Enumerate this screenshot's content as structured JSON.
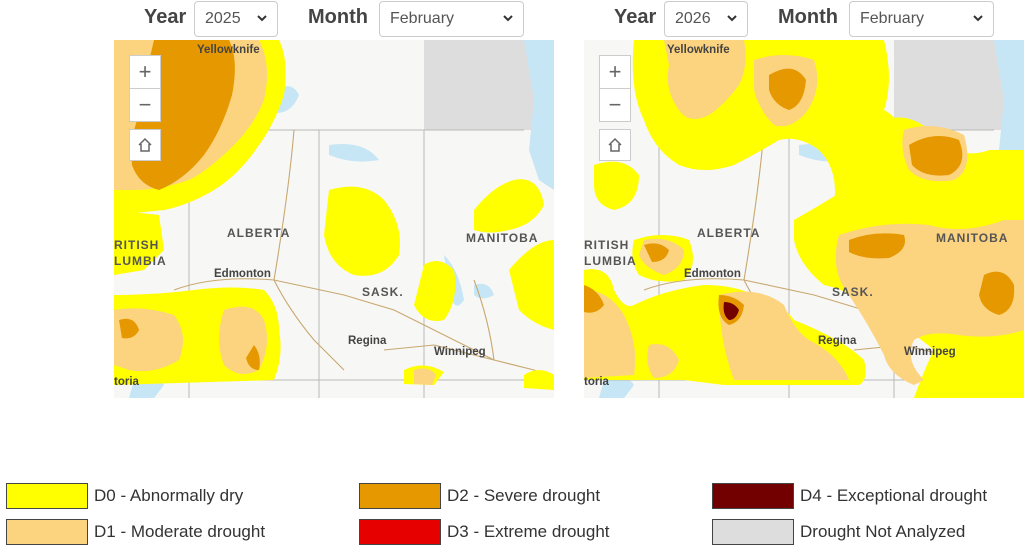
{
  "left": {
    "year_label": "Year",
    "year_value": "2025",
    "month_label": "Month",
    "month_value": "February"
  },
  "right": {
    "year_label": "Year",
    "year_value": "2026",
    "month_label": "Month",
    "month_value": "February"
  },
  "map_labels": {
    "yellowknife": "Yellowknife",
    "alberta": "ALBERTA",
    "manitoba": "MANITOBA",
    "sask": "SASK.",
    "edmonton": "Edmonton",
    "regina": "Regina",
    "winnipeg": "Winnipeg",
    "bc_line1": "RITISH",
    "bc_line2": "LUMBIA",
    "victoria": "toria"
  },
  "controls": {
    "zoom_in": "+",
    "zoom_out": "−"
  },
  "legend": [
    {
      "label": "D0 - Abnormally dry",
      "color": "#ffff00"
    },
    {
      "label": "D1 - Moderate drought",
      "color": "#fcd37f"
    },
    {
      "label": "D2 - Severe drought",
      "color": "#e69800"
    },
    {
      "label": "D3 - Extreme drought",
      "color": "#e60000"
    },
    {
      "label": "D4 - Exceptional drought",
      "color": "#730000"
    },
    {
      "label": "Drought Not Analyzed",
      "color": "#dddddd"
    }
  ]
}
